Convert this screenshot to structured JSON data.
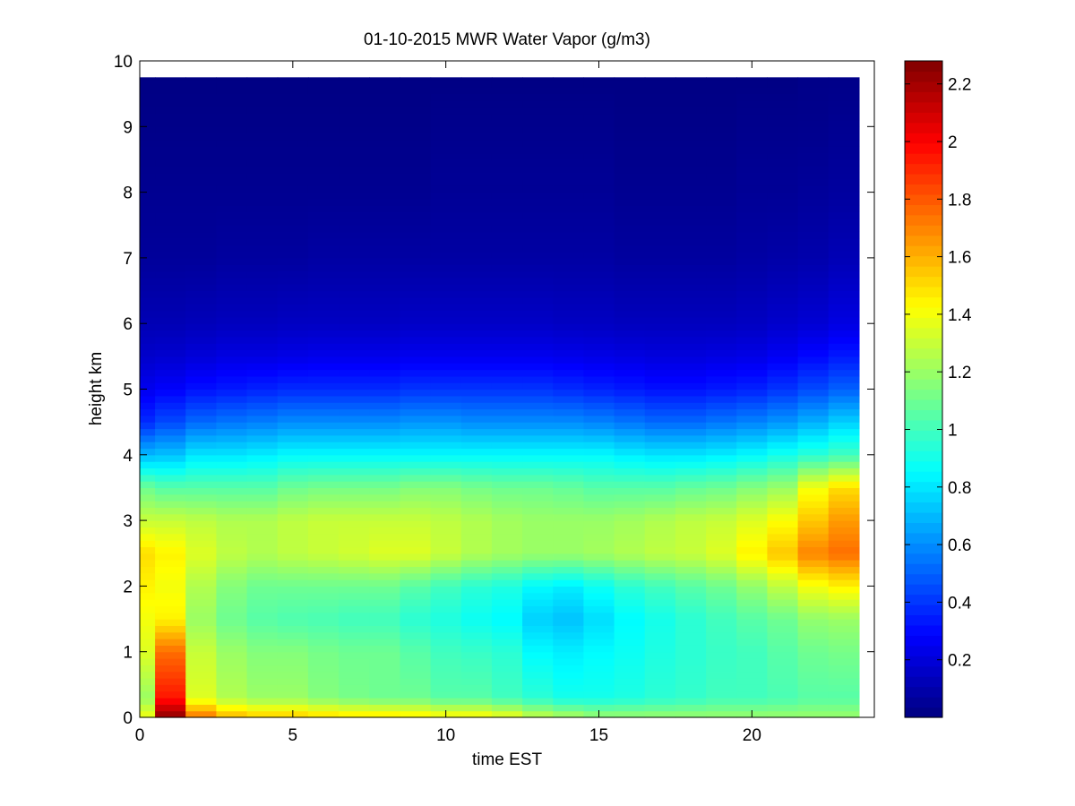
{
  "chart_data": {
    "type": "heatmap",
    "title": "01-10-2015 MWR Water Vapor (g/m3)",
    "xlabel": "time EST",
    "ylabel": "height km",
    "xlim": [
      0,
      24
    ],
    "ylim": [
      0,
      10
    ],
    "x_ticks": [
      "0",
      "5",
      "10",
      "15",
      "20"
    ],
    "y_ticks": [
      "0",
      "1",
      "2",
      "3",
      "4",
      "5",
      "6",
      "7",
      "8",
      "9",
      "10"
    ],
    "colormap": "jet",
    "colorbar": {
      "range": [
        0,
        2.28
      ],
      "ticks": [
        "0.2",
        "0.4",
        "0.6",
        "0.8",
        "1",
        "1.2",
        "1.4",
        "1.6",
        "1.8",
        "2",
        "2.2"
      ]
    },
    "x": [
      0,
      1,
      2,
      3,
      4,
      5,
      6,
      7,
      8,
      9,
      10,
      11,
      12,
      13,
      14,
      15,
      16,
      17,
      18,
      19,
      20,
      21,
      22,
      23
    ],
    "y_profile": [
      [
        0.0,
        1.4,
        2.25,
        1.75,
        1.6,
        1.55,
        1.55,
        1.52,
        1.5,
        1.5,
        1.48,
        1.45,
        1.45,
        1.4,
        1.3,
        1.25,
        1.2,
        1.2,
        1.2,
        1.2,
        1.2,
        1.2,
        1.2,
        1.2,
        1.2
      ],
      [
        0.3,
        1.2,
        1.95,
        1.35,
        1.25,
        1.2,
        1.2,
        1.15,
        1.12,
        1.1,
        1.1,
        1.05,
        1.05,
        1.0,
        0.95,
        0.9,
        0.9,
        0.92,
        0.95,
        0.97,
        1.0,
        1.0,
        1.02,
        1.05,
        1.05
      ],
      [
        1.0,
        1.35,
        1.75,
        1.3,
        1.2,
        1.15,
        1.15,
        1.12,
        1.1,
        1.1,
        1.05,
        1.0,
        0.98,
        0.95,
        0.85,
        0.82,
        0.85,
        0.88,
        0.92,
        0.95,
        0.98,
        1.0,
        1.05,
        1.1,
        1.12
      ],
      [
        1.5,
        1.4,
        1.45,
        1.2,
        1.1,
        1.05,
        1.03,
        1.02,
        1.0,
        1.0,
        0.95,
        0.92,
        0.88,
        0.85,
        0.75,
        0.72,
        0.78,
        0.85,
        0.9,
        0.95,
        1.0,
        1.05,
        1.1,
        1.18,
        1.2
      ],
      [
        2.0,
        1.45,
        1.4,
        1.25,
        1.15,
        1.1,
        1.1,
        1.1,
        1.1,
        1.1,
        1.05,
        1.0,
        0.95,
        0.92,
        0.85,
        0.82,
        0.88,
        0.95,
        1.0,
        1.05,
        1.1,
        1.18,
        1.28,
        1.4,
        1.45
      ],
      [
        2.5,
        1.5,
        1.45,
        1.35,
        1.28,
        1.25,
        1.28,
        1.3,
        1.32,
        1.35,
        1.35,
        1.3,
        1.25,
        1.22,
        1.2,
        1.2,
        1.22,
        1.25,
        1.28,
        1.3,
        1.35,
        1.45,
        1.55,
        1.7,
        1.75
      ],
      [
        3.0,
        1.3,
        1.3,
        1.28,
        1.25,
        1.25,
        1.28,
        1.3,
        1.3,
        1.3,
        1.3,
        1.28,
        1.25,
        1.22,
        1.2,
        1.2,
        1.2,
        1.22,
        1.25,
        1.28,
        1.3,
        1.35,
        1.42,
        1.55,
        1.65
      ],
      [
        3.5,
        1.1,
        1.05,
        1.05,
        1.05,
        1.05,
        1.1,
        1.12,
        1.12,
        1.12,
        1.15,
        1.15,
        1.12,
        1.1,
        1.1,
        1.08,
        1.05,
        1.05,
        1.05,
        1.08,
        1.1,
        1.15,
        1.2,
        1.4,
        1.5
      ],
      [
        4.0,
        0.7,
        0.72,
        0.8,
        0.8,
        0.82,
        0.85,
        0.85,
        0.85,
        0.85,
        0.85,
        0.85,
        0.85,
        0.85,
        0.85,
        0.85,
        0.85,
        0.82,
        0.8,
        0.8,
        0.82,
        0.85,
        0.9,
        0.95,
        1.0
      ],
      [
        4.5,
        0.38,
        0.45,
        0.52,
        0.55,
        0.57,
        0.6,
        0.6,
        0.6,
        0.6,
        0.62,
        0.62,
        0.6,
        0.6,
        0.6,
        0.6,
        0.58,
        0.55,
        0.52,
        0.52,
        0.55,
        0.58,
        0.62,
        0.68,
        0.75
      ],
      [
        5.0,
        0.25,
        0.28,
        0.32,
        0.34,
        0.36,
        0.38,
        0.38,
        0.38,
        0.38,
        0.4,
        0.4,
        0.4,
        0.4,
        0.4,
        0.38,
        0.36,
        0.34,
        0.32,
        0.32,
        0.34,
        0.36,
        0.4,
        0.45,
        0.5
      ],
      [
        5.5,
        0.17,
        0.18,
        0.2,
        0.22,
        0.22,
        0.23,
        0.24,
        0.24,
        0.24,
        0.25,
        0.25,
        0.25,
        0.25,
        0.25,
        0.24,
        0.23,
        0.22,
        0.21,
        0.21,
        0.22,
        0.23,
        0.26,
        0.3,
        0.34
      ],
      [
        6.0,
        0.12,
        0.12,
        0.13,
        0.14,
        0.14,
        0.15,
        0.15,
        0.15,
        0.15,
        0.16,
        0.16,
        0.16,
        0.16,
        0.16,
        0.15,
        0.15,
        0.14,
        0.14,
        0.14,
        0.14,
        0.15,
        0.17,
        0.19,
        0.22
      ],
      [
        7.0,
        0.06,
        0.06,
        0.06,
        0.07,
        0.07,
        0.07,
        0.08,
        0.08,
        0.08,
        0.08,
        0.08,
        0.08,
        0.08,
        0.08,
        0.08,
        0.08,
        0.07,
        0.07,
        0.07,
        0.07,
        0.08,
        0.09,
        0.1,
        0.12
      ],
      [
        8.0,
        0.04,
        0.04,
        0.04,
        0.04,
        0.04,
        0.04,
        0.04,
        0.04,
        0.04,
        0.04,
        0.05,
        0.05,
        0.05,
        0.05,
        0.05,
        0.05,
        0.04,
        0.04,
        0.04,
        0.04,
        0.05,
        0.05,
        0.06,
        0.07
      ],
      [
        9.0,
        0.02,
        0.02,
        0.02,
        0.02,
        0.02,
        0.02,
        0.02,
        0.02,
        0.02,
        0.02,
        0.03,
        0.03,
        0.03,
        0.03,
        0.03,
        0.03,
        0.02,
        0.02,
        0.02,
        0.02,
        0.03,
        0.03,
        0.03,
        0.04
      ],
      [
        9.75,
        0.01,
        0.01,
        0.01,
        0.01,
        0.01,
        0.01,
        0.01,
        0.01,
        0.01,
        0.01,
        0.01,
        0.01,
        0.01,
        0.01,
        0.01,
        0.01,
        0.01,
        0.01,
        0.01,
        0.01,
        0.01,
        0.01,
        0.02,
        0.02
      ]
    ]
  }
}
